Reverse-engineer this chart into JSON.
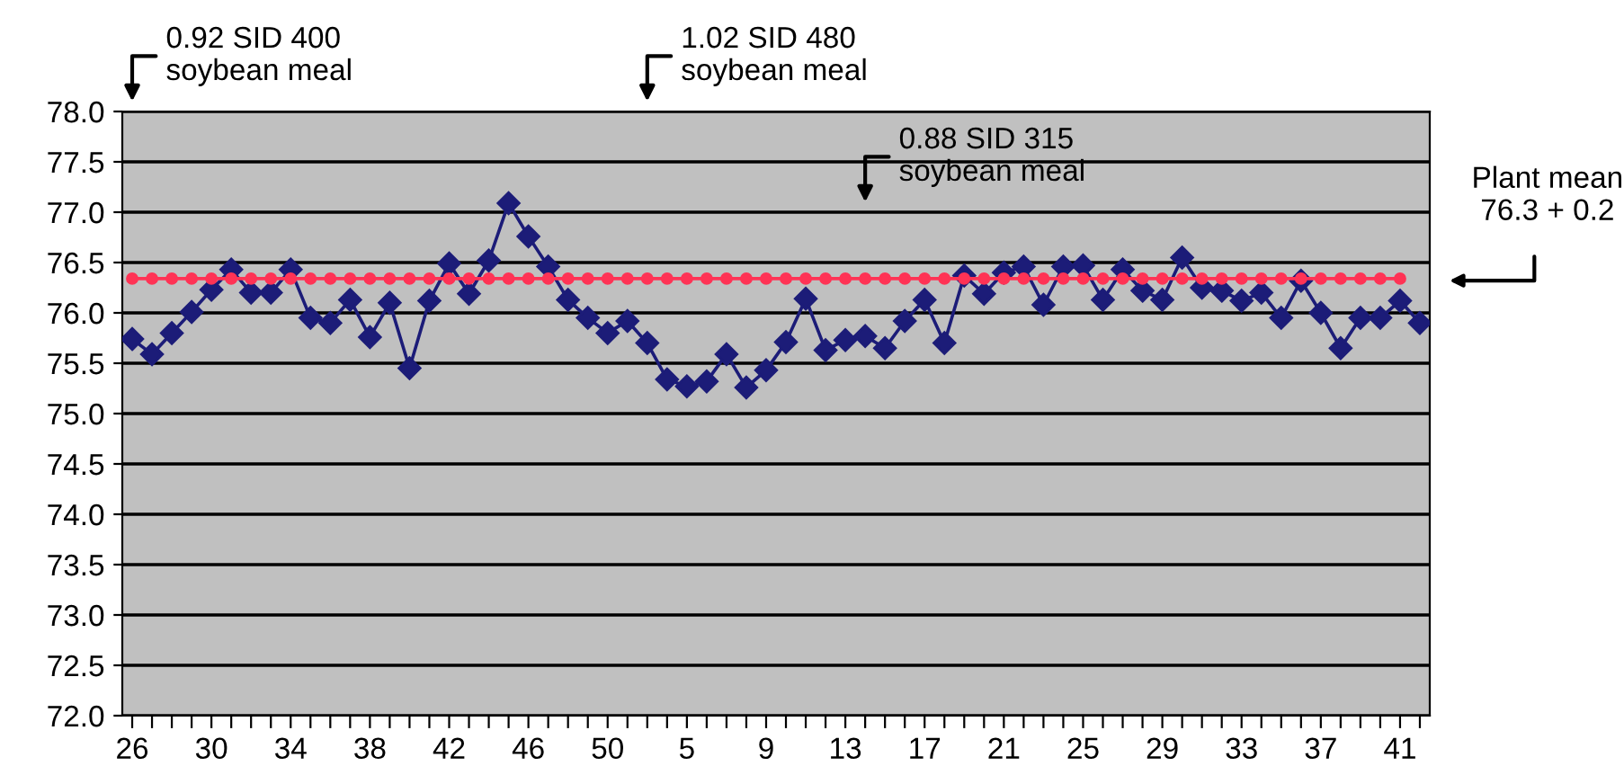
{
  "chart_data": {
    "type": "line",
    "categories": [
      "26",
      null,
      null,
      null,
      "30",
      null,
      null,
      null,
      "34",
      null,
      null,
      null,
      "38",
      null,
      null,
      null,
      "42",
      null,
      null,
      null,
      "46",
      null,
      null,
      null,
      "50",
      null,
      null,
      null,
      "5",
      null,
      null,
      null,
      "9",
      null,
      null,
      null,
      "13",
      null,
      null,
      null,
      "17",
      null,
      null,
      null,
      "21",
      null,
      null,
      null,
      "25",
      null,
      null,
      null,
      "29",
      null,
      null,
      null,
      "33",
      null,
      null,
      null,
      "37",
      null,
      null,
      null,
      "41",
      null
    ],
    "series": [
      {
        "color": "#1c1c78",
        "marker": "diamond",
        "values": [
          75.74,
          75.59,
          75.8,
          76.01,
          76.23,
          76.43,
          76.2,
          76.2,
          76.43,
          75.95,
          75.9,
          76.13,
          75.76,
          76.1,
          75.45,
          76.12,
          76.49,
          76.19,
          76.52,
          77.09,
          76.76,
          76.46,
          76.13,
          75.95,
          75.8,
          75.92,
          75.7,
          75.34,
          75.27,
          75.32,
          75.59,
          75.26,
          75.43,
          75.71,
          76.14,
          75.63,
          75.73,
          75.77,
          75.65,
          75.92,
          76.13,
          75.7,
          76.37,
          76.19,
          76.4,
          76.46,
          76.08,
          76.46,
          76.47,
          76.13,
          76.43,
          76.22,
          76.13,
          76.55,
          76.25,
          76.22,
          76.12,
          76.2,
          75.95,
          76.32,
          76.0,
          75.65,
          75.95,
          75.95,
          76.12,
          75.9
        ]
      },
      {
        "color": "#ff3355",
        "marker": "circle",
        "values": [
          76.34,
          76.34,
          76.34,
          76.34,
          76.34,
          76.34,
          76.34,
          76.34,
          76.34,
          76.34,
          76.34,
          76.34,
          76.34,
          76.34,
          76.34,
          76.34,
          76.34,
          76.34,
          76.34,
          76.34,
          76.34,
          76.34,
          76.34,
          76.34,
          76.34,
          76.34,
          76.34,
          76.34,
          76.34,
          76.34,
          76.34,
          76.34,
          76.34,
          76.34,
          76.34,
          76.34,
          76.34,
          76.34,
          76.34,
          76.34,
          76.34,
          76.34,
          76.34,
          76.34,
          76.34,
          76.34,
          76.34,
          76.34,
          76.34,
          76.34,
          76.34,
          76.34,
          76.34,
          76.34,
          76.34,
          76.34,
          76.34,
          76.34,
          76.34,
          76.34,
          76.34,
          76.34,
          76.34,
          76.34,
          76.34,
          null
        ]
      }
    ],
    "ylim": [
      72.0,
      78.0
    ],
    "yticks": [
      {
        "value": 72,
        "label": "72.0"
      },
      72.5,
      {
        "value": 73,
        "label": "73.0"
      },
      73.5,
      {
        "value": 74,
        "label": "74.0"
      },
      74.5,
      {
        "value": 75,
        "label": "75.0"
      },
      75.5,
      {
        "value": 76,
        "label": "76.0"
      },
      76.5,
      {
        "value": 77,
        "label": "77.0"
      },
      77.5,
      {
        "value": 78,
        "label": "78.0"
      }
    ],
    "grid": "y",
    "line_style": "solid",
    "annotations": [
      "0.92 SID 400\nsoybean meal",
      "1.02 SID 480\nsoybean meal",
      "0.88 SID 315\nsoybean meal",
      "Plant mean\n76.3 + 0.2"
    ]
  }
}
